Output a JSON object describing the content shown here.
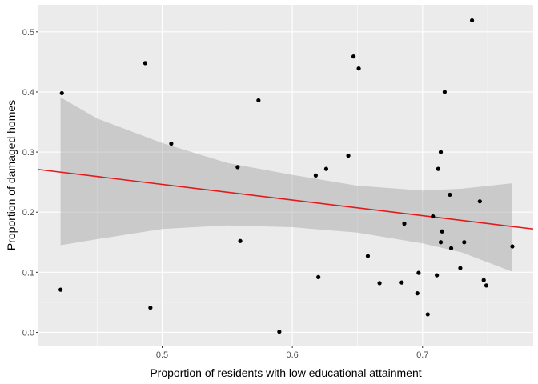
{
  "chart_data": {
    "type": "scatter",
    "xlabel": "Proportion of residents with low educational attainment",
    "ylabel": "Proportion of damaged homes",
    "xlim": [
      0.405,
      0.785
    ],
    "ylim": [
      -0.022,
      0.545
    ],
    "x_ticks": [
      0.5,
      0.6,
      0.7
    ],
    "x_tick_labels": [
      "0.5",
      "0.6",
      "0.7"
    ],
    "y_ticks": [
      0.0,
      0.1,
      0.2,
      0.3,
      0.4,
      0.5
    ],
    "y_tick_labels": [
      "0.0",
      "0.1",
      "0.2",
      "0.3",
      "0.4",
      "0.5"
    ],
    "grid": true,
    "points": [
      {
        "x": 0.423,
        "y": 0.398
      },
      {
        "x": 0.422,
        "y": 0.071
      },
      {
        "x": 0.487,
        "y": 0.448
      },
      {
        "x": 0.491,
        "y": 0.041
      },
      {
        "x": 0.507,
        "y": 0.314
      },
      {
        "x": 0.558,
        "y": 0.275
      },
      {
        "x": 0.56,
        "y": 0.152
      },
      {
        "x": 0.574,
        "y": 0.386
      },
      {
        "x": 0.59,
        "y": 0.001
      },
      {
        "x": 0.618,
        "y": 0.261
      },
      {
        "x": 0.62,
        "y": 0.092
      },
      {
        "x": 0.626,
        "y": 0.272
      },
      {
        "x": 0.643,
        "y": 0.294
      },
      {
        "x": 0.647,
        "y": 0.459
      },
      {
        "x": 0.651,
        "y": 0.439
      },
      {
        "x": 0.658,
        "y": 0.127
      },
      {
        "x": 0.667,
        "y": 0.082
      },
      {
        "x": 0.684,
        "y": 0.083
      },
      {
        "x": 0.686,
        "y": 0.181
      },
      {
        "x": 0.696,
        "y": 0.065
      },
      {
        "x": 0.697,
        "y": 0.099
      },
      {
        "x": 0.704,
        "y": 0.03
      },
      {
        "x": 0.708,
        "y": 0.193
      },
      {
        "x": 0.711,
        "y": 0.095
      },
      {
        "x": 0.712,
        "y": 0.272
      },
      {
        "x": 0.714,
        "y": 0.3
      },
      {
        "x": 0.714,
        "y": 0.15
      },
      {
        "x": 0.715,
        "y": 0.168
      },
      {
        "x": 0.717,
        "y": 0.4
      },
      {
        "x": 0.721,
        "y": 0.229
      },
      {
        "x": 0.722,
        "y": 0.14
      },
      {
        "x": 0.729,
        "y": 0.107
      },
      {
        "x": 0.732,
        "y": 0.15
      },
      {
        "x": 0.738,
        "y": 0.519
      },
      {
        "x": 0.744,
        "y": 0.218
      },
      {
        "x": 0.747,
        "y": 0.087
      },
      {
        "x": 0.749,
        "y": 0.078
      },
      {
        "x": 0.769,
        "y": 0.143
      }
    ],
    "fit_line": {
      "x": [
        0.405,
        0.785
      ],
      "y": [
        0.271,
        0.172
      ],
      "color": "#e31a1c"
    },
    "confidence_band": {
      "x": [
        0.422,
        0.45,
        0.5,
        0.55,
        0.6,
        0.65,
        0.7,
        0.73,
        0.769
      ],
      "lower": [
        0.145,
        0.155,
        0.172,
        0.178,
        0.175,
        0.166,
        0.148,
        0.133,
        0.101
      ],
      "upper": [
        0.391,
        0.356,
        0.315,
        0.282,
        0.262,
        0.244,
        0.236,
        0.239,
        0.248
      ],
      "color": "#999999"
    },
    "colors": {
      "panel_background": "#ebebeb",
      "grid_major": "#ffffff",
      "point": "#000000"
    }
  }
}
